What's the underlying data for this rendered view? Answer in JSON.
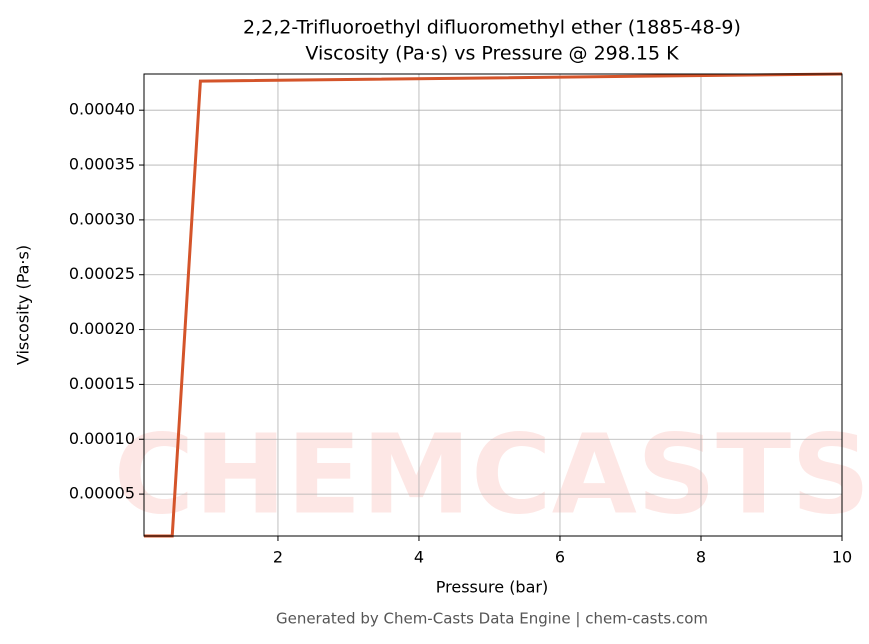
{
  "chart_data": {
    "type": "line",
    "title": "2,2,2-Trifluoroethyl difluoromethyl ether (1885-48-9)",
    "subtitle": "Viscosity (Pa·s) vs Pressure @ 298.15 K",
    "x_label": "Pressure (bar)",
    "y_label": "Viscosity (Pa·s)",
    "footer": "Generated by Chem-Casts Data Engine | chem-casts.com",
    "watermark": "CHEMCASTS",
    "x": [
      0.1,
      0.5,
      0.9,
      10
    ],
    "series": [
      {
        "name": "Viscosity",
        "color": "#d4542a",
        "values": [
          1.18e-05,
          1.18e-05,
          0.0004265,
          0.000433
        ]
      }
    ],
    "xlim": [
      0.1,
      10
    ],
    "xticks": [
      2,
      4,
      6,
      8,
      10
    ],
    "ylim": [
      1.18e-05,
      0.000433
    ],
    "yticks": [
      5e-05,
      {
        "value": 0.0001,
        "label": "0.00010"
      },
      0.00015,
      {
        "value": 0.0002,
        "label": "0.00020"
      },
      0.00025,
      {
        "value": 0.0003,
        "label": "0.00030"
      },
      0.00035,
      {
        "value": 0.0004,
        "label": "0.00040"
      }
    ],
    "grid": true
  }
}
